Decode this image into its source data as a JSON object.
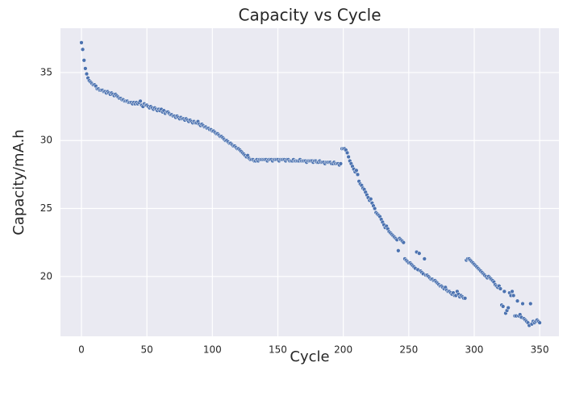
{
  "chart_data": {
    "type": "scatter",
    "title": "Capacity vs Cycle",
    "x_label": "Cycle",
    "y_label": "Capacity/mA.h",
    "color": "#4c72b0",
    "grid": true,
    "xlim": [
      -16,
      364.7
    ],
    "ylim": [
      15.6,
      38.26
    ],
    "xticks": [
      0,
      50,
      100,
      150,
      200,
      250,
      300,
      350
    ],
    "yticks": [
      20,
      25,
      30,
      35
    ],
    "series": [
      {
        "name": "Capacity",
        "color": "#4c72b0",
        "x": [
          0,
          1,
          2,
          3,
          4,
          5,
          6,
          7,
          8,
          9,
          10,
          11,
          12,
          13,
          14,
          15,
          16,
          17,
          18,
          19,
          20,
          21,
          22,
          23,
          24,
          25,
          26,
          27,
          28,
          29,
          30,
          31,
          32,
          33,
          34,
          35,
          36,
          37,
          38,
          39,
          40,
          41,
          42,
          43,
          44,
          45,
          46,
          47,
          48,
          49,
          50,
          51,
          52,
          53,
          54,
          55,
          56,
          57,
          58,
          59,
          60,
          61,
          62,
          63,
          64,
          65,
          66,
          67,
          68,
          69,
          70,
          71,
          72,
          73,
          74,
          75,
          76,
          77,
          78,
          79,
          80,
          81,
          82,
          83,
          84,
          85,
          86,
          87,
          88,
          89,
          90,
          91,
          92,
          93,
          94,
          95,
          96,
          97,
          98,
          99,
          100,
          101,
          102,
          103,
          104,
          105,
          106,
          107,
          108,
          109,
          110,
          111,
          112,
          113,
          114,
          115,
          116,
          117,
          118,
          119,
          120,
          121,
          122,
          123,
          124,
          125,
          126,
          127,
          128,
          129,
          130,
          131,
          132,
          133,
          134,
          135,
          136,
          137,
          138,
          139,
          140,
          141,
          142,
          143,
          144,
          145,
          146,
          147,
          148,
          149,
          150,
          151,
          152,
          153,
          154,
          155,
          156,
          157,
          158,
          159,
          160,
          161,
          162,
          163,
          164,
          165,
          166,
          167,
          168,
          169,
          170,
          171,
          172,
          173,
          174,
          175,
          176,
          177,
          178,
          179,
          180,
          181,
          182,
          183,
          184,
          185,
          186,
          187,
          188,
          189,
          190,
          191,
          192,
          193,
          194,
          195,
          196,
          197,
          198,
          199,
          200,
          201,
          202,
          203,
          204,
          205,
          206,
          207,
          208,
          209,
          210,
          211,
          212,
          213,
          214,
          215,
          216,
          217,
          218,
          219,
          220,
          221,
          222,
          223,
          224,
          225,
          226,
          227,
          228,
          229,
          230,
          231,
          232,
          233,
          234,
          235,
          236,
          237,
          238,
          239,
          240,
          241,
          242,
          243,
          244,
          245,
          246,
          247,
          248,
          249,
          250,
          251,
          252,
          253,
          254,
          255,
          256,
          257,
          258,
          259,
          260,
          261,
          262,
          263,
          264,
          265,
          266,
          267,
          268,
          269,
          270,
          271,
          272,
          273,
          274,
          275,
          276,
          277,
          278,
          279,
          280,
          281,
          282,
          283,
          284,
          285,
          286,
          287,
          288,
          289,
          290,
          291,
          292,
          293,
          294,
          295,
          296,
          297,
          298,
          299,
          300,
          301,
          302,
          303,
          304,
          305,
          306,
          307,
          308,
          309,
          310,
          311,
          312,
          313,
          314,
          315,
          316,
          317,
          318,
          319,
          320,
          321,
          322,
          323,
          324,
          325,
          326,
          327,
          328,
          329,
          330,
          331,
          332,
          333,
          334,
          335,
          336,
          337,
          338,
          339,
          340,
          341,
          342,
          343,
          344,
          345,
          346,
          347,
          348,
          349,
          350
        ],
        "values": [
          37.2,
          36.7,
          35.9,
          35.3,
          34.9,
          34.6,
          34.4,
          34.3,
          34.2,
          34.1,
          34.1,
          34.0,
          33.8,
          33.8,
          33.7,
          33.7,
          33.7,
          33.6,
          33.6,
          33.5,
          33.6,
          33.5,
          33.4,
          33.5,
          33.4,
          33.3,
          33.4,
          33.3,
          33.2,
          33.1,
          33.1,
          33.0,
          33.0,
          32.9,
          32.9,
          32.9,
          32.8,
          32.8,
          32.8,
          32.7,
          32.8,
          32.7,
          32.8,
          32.7,
          32.8,
          32.9,
          32.6,
          32.5,
          32.7,
          32.6,
          32.6,
          32.5,
          32.4,
          32.5,
          32.4,
          32.3,
          32.4,
          32.3,
          32.2,
          32.3,
          32.2,
          32.3,
          32.1,
          32.2,
          32.0,
          32.1,
          32.1,
          32.0,
          31.9,
          31.9,
          31.8,
          31.8,
          31.7,
          31.8,
          31.7,
          31.6,
          31.7,
          31.6,
          31.6,
          31.5,
          31.6,
          31.5,
          31.4,
          31.5,
          31.4,
          31.3,
          31.4,
          31.3,
          31.3,
          31.4,
          31.2,
          31.1,
          31.2,
          31.1,
          31.0,
          31.0,
          30.9,
          30.9,
          30.8,
          30.8,
          30.7,
          30.7,
          30.6,
          30.5,
          30.5,
          30.4,
          30.3,
          30.3,
          30.2,
          30.1,
          30.0,
          30.0,
          29.9,
          29.8,
          29.8,
          29.7,
          29.6,
          29.6,
          29.5,
          29.4,
          29.4,
          29.3,
          29.2,
          29.1,
          29.0,
          28.9,
          28.8,
          28.9,
          28.7,
          28.6,
          28.6,
          28.6,
          28.5,
          28.5,
          28.6,
          28.5,
          28.6,
          28.6,
          28.6,
          28.6,
          28.6,
          28.6,
          28.5,
          28.6,
          28.6,
          28.6,
          28.5,
          28.6,
          28.6,
          28.6,
          28.6,
          28.5,
          28.6,
          28.6,
          28.6,
          28.6,
          28.5,
          28.6,
          28.6,
          28.5,
          28.5,
          28.5,
          28.6,
          28.5,
          28.5,
          28.5,
          28.5,
          28.6,
          28.5,
          28.5,
          28.5,
          28.5,
          28.4,
          28.5,
          28.5,
          28.5,
          28.5,
          28.4,
          28.5,
          28.5,
          28.4,
          28.4,
          28.5,
          28.4,
          28.4,
          28.4,
          28.3,
          28.4,
          28.4,
          28.4,
          28.4,
          28.3,
          28.3,
          28.4,
          28.3,
          28.3,
          28.3,
          28.2,
          28.3,
          29.4,
          29.4,
          29.4,
          29.3,
          29.1,
          28.8,
          28.5,
          28.3,
          28.1,
          27.9,
          27.7,
          27.8,
          27.5,
          27.0,
          26.8,
          26.7,
          26.5,
          26.4,
          26.2,
          26.0,
          25.8,
          25.6,
          25.7,
          25.4,
          25.2,
          25.0,
          24.7,
          24.6,
          24.5,
          24.4,
          24.2,
          24.0,
          23.8,
          23.6,
          23.7,
          23.5,
          23.3,
          23.2,
          23.1,
          23.0,
          22.9,
          22.8,
          22.7,
          21.9,
          22.8,
          22.7,
          22.6,
          22.5,
          21.3,
          21.2,
          21.1,
          21.0,
          21.0,
          20.9,
          20.8,
          20.7,
          20.6,
          21.8,
          20.5,
          21.7,
          20.4,
          20.3,
          20.2,
          21.3,
          20.1,
          20.1,
          20.0,
          19.9,
          19.8,
          19.8,
          19.7,
          19.7,
          19.6,
          19.5,
          19.4,
          19.3,
          19.3,
          19.2,
          19.1,
          19.2,
          19.0,
          18.9,
          18.9,
          18.8,
          18.7,
          18.8,
          18.6,
          18.6,
          18.9,
          18.7,
          18.5,
          18.6,
          18.5,
          18.4,
          18.4,
          21.2,
          21.3,
          21.3,
          21.2,
          21.1,
          21.0,
          20.9,
          20.8,
          20.7,
          20.6,
          20.5,
          20.4,
          20.3,
          20.2,
          20.1,
          20.0,
          19.9,
          20.0,
          19.9,
          19.8,
          19.7,
          19.6,
          19.4,
          19.3,
          19.2,
          19.3,
          19.1,
          17.9,
          17.8,
          18.9,
          17.3,
          17.5,
          17.7,
          18.8,
          18.6,
          18.9,
          18.6,
          17.1,
          17.1,
          18.2,
          17.1,
          17.2,
          17.0,
          18.0,
          16.9,
          16.8,
          16.7,
          16.6,
          16.4,
          18.0,
          16.5,
          16.7,
          16.6,
          16.7,
          16.8,
          16.7,
          16.6
        ]
      }
    ]
  }
}
